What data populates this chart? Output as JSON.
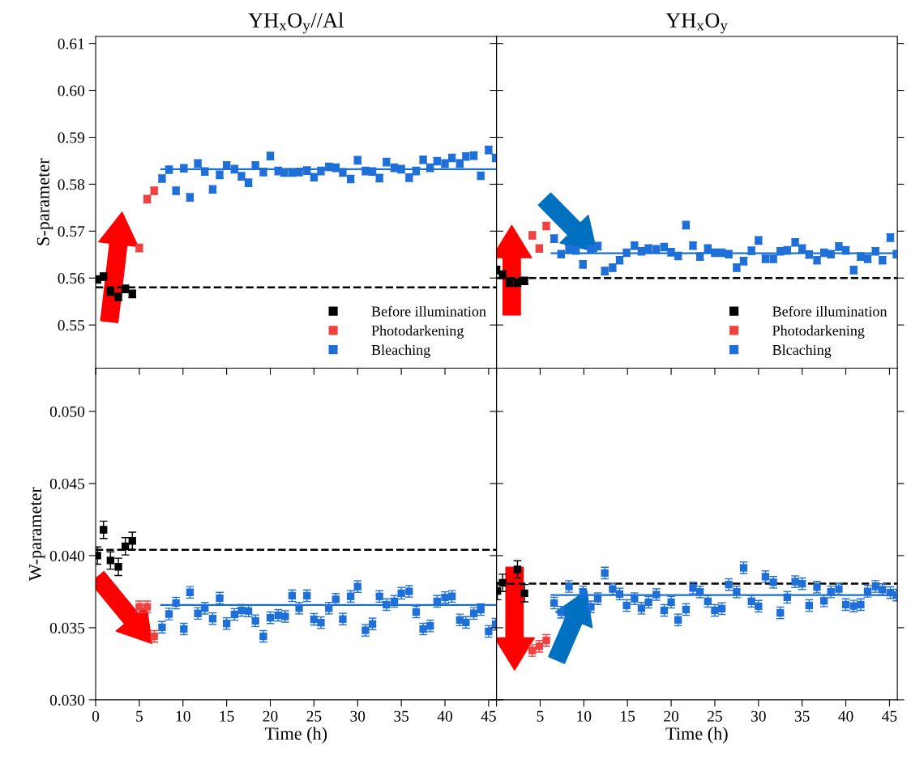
{
  "chart_data": [
    {
      "type": "scatter",
      "title": "YH$_{x}$O$_{y}$//Al",
      "ylabel": "S-parameter",
      "xlim": [
        0,
        45.9
      ],
      "ylim": [
        0.5408,
        0.6115
      ],
      "xticks": [
        0,
        5,
        10,
        15,
        20,
        25,
        30,
        35,
        40,
        45
      ],
      "yticks": [
        {
          "value": 0.55,
          "label": "0.55"
        },
        {
          "value": 0.56,
          "label": "0.56"
        },
        {
          "value": 0.57,
          "label": "0.57"
        },
        {
          "value": 0.58,
          "label": "0.58"
        },
        {
          "value": 0.59,
          "label": "0.59"
        },
        {
          "value": 0.6,
          "label": "0.60"
        },
        {
          "value": 0.61,
          "label": "0.61"
        }
      ],
      "tick_labels": "y",
      "marker": "square",
      "grid": false,
      "legend": "bottom right",
      "ref_lines": [
        {
          "axis": "y",
          "value": 0.558,
          "color": "#000000",
          "line_style": "dashed"
        }
      ],
      "series": [
        {
          "name": "Before illumination",
          "color": "#000000",
          "x": [
            0.2,
            0.9,
            1.7,
            2.6,
            3.4,
            4.2
          ],
          "values": [
            0.5597,
            0.5603,
            0.5571,
            0.556,
            0.5577,
            0.5566
          ],
          "errors": [
            0.0008,
            0.0008,
            0.0008,
            0.0008,
            0.0008,
            0.0008
          ]
        },
        {
          "name": "Photodarkening",
          "color": "#f04040",
          "x": [
            5.0,
            5.9,
            6.7
          ],
          "values": [
            0.5664,
            0.5768,
            0.5786
          ],
          "errors": [
            0.0008,
            0.0008,
            0.0008
          ]
        },
        {
          "name": "Bleaching",
          "color": "#1f6fd8",
          "x": [
            7.6,
            8.4,
            9.2,
            10.1,
            10.8,
            11.7,
            12.5,
            13.4,
            14.2,
            15.0,
            15.9,
            16.7,
            17.5,
            18.3,
            19.2,
            20.0,
            20.9,
            21.6,
            22.5,
            23.3,
            24.2,
            25.0,
            25.8,
            26.7,
            27.5,
            28.3,
            29.2,
            30.0,
            30.9,
            31.7,
            32.5,
            33.3,
            34.2,
            35.0,
            35.9,
            36.7,
            37.5,
            38.3,
            39.1,
            40.0,
            40.8,
            41.7,
            42.4,
            43.3,
            44.1,
            45.0,
            45.8
          ],
          "values": [
            0.5812,
            0.5831,
            0.5786,
            0.5834,
            0.5772,
            0.5844,
            0.5827,
            0.5789,
            0.582,
            0.584,
            0.5832,
            0.5817,
            0.5803,
            0.584,
            0.5826,
            0.586,
            0.5828,
            0.5825,
            0.5825,
            0.5826,
            0.5829,
            0.5815,
            0.5828,
            0.5837,
            0.5835,
            0.5825,
            0.5811,
            0.5851,
            0.5828,
            0.5827,
            0.5813,
            0.5847,
            0.5835,
            0.5832,
            0.5814,
            0.5828,
            0.5852,
            0.5835,
            0.5849,
            0.5844,
            0.5856,
            0.5844,
            0.5859,
            0.5861,
            0.5818,
            0.5873,
            0.5856
          ],
          "errors": [
            0.0008,
            0.0008,
            0.0008,
            0.0008,
            0.0008,
            0.0008,
            0.0008,
            0.0008,
            0.0008,
            0.0008,
            0.0008,
            0.0008,
            0.0008,
            0.0008,
            0.0008,
            0.0008,
            0.0008,
            0.0008,
            0.0008,
            0.0008,
            0.0008,
            0.0008,
            0.0008,
            0.0008,
            0.0008,
            0.0008,
            0.0008,
            0.0008,
            0.0008,
            0.0008,
            0.0008,
            0.0008,
            0.0008,
            0.0008,
            0.0008,
            0.0008,
            0.0008,
            0.0008,
            0.0008,
            0.0008,
            0.0008,
            0.0008,
            0.0008,
            0.0008,
            0.0008,
            0.0008,
            0.0008
          ]
        },
        {
          "type": "line",
          "color": "#1a6fd6",
          "line_style": "solid",
          "marker": "none",
          "x": [
            7.5,
            45.9
          ],
          "values": [
            0.5832,
            0.5832
          ]
        }
      ]
    },
    {
      "type": "scatter",
      "title": "YH$_{x}$O$_{y}$",
      "xlim": [
        0,
        45.9
      ],
      "ylim": [
        0.5408,
        0.6115
      ],
      "xticks": [
        {
          "value": 0,
          "label": null
        },
        5,
        10,
        15,
        20,
        25,
        30,
        35,
        40,
        45
      ],
      "yticks": [
        0.55,
        0.56,
        0.57,
        0.58,
        0.59,
        0.6,
        0.61
      ],
      "tick_labels": false,
      "marker": "square",
      "grid": false,
      "legend": "bottom right",
      "ref_lines": [
        {
          "axis": "y",
          "value": 0.56,
          "color": "#000000",
          "line_style": "dashed"
        }
      ],
      "series": [
        {
          "name": "Before illumination",
          "color": "#000000",
          "x": [
            0.0,
            0.7,
            1.5,
            2.4,
            3.2
          ],
          "values": [
            0.5617,
            0.5607,
            0.559,
            0.559,
            0.5594
          ],
          "errors": [
            0.0008,
            0.0008,
            0.0008,
            0.0008,
            0.0008
          ]
        },
        {
          "name": "Photodarkening",
          "color": "#f04040",
          "x": [
            4.1,
            4.9,
            5.7
          ],
          "values": [
            0.5691,
            0.5663,
            0.5711
          ],
          "errors": [
            0.0008,
            0.0008,
            0.0008
          ]
        },
        {
          "name": "Blcaching",
          "color": "#1f6fd8",
          "x": [
            6.6,
            7.4,
            8.3,
            9.1,
            9.9,
            10.8,
            11.6,
            12.4,
            13.3,
            14.1,
            14.9,
            15.8,
            16.6,
            17.4,
            18.3,
            19.2,
            20.0,
            20.8,
            21.7,
            22.5,
            23.3,
            24.2,
            25.0,
            25.8,
            26.6,
            27.5,
            28.3,
            29.2,
            30.0,
            30.8,
            31.7,
            32.5,
            33.3,
            34.2,
            35.0,
            35.8,
            36.7,
            37.5,
            38.3,
            39.2,
            40.0,
            40.9,
            41.7,
            42.5,
            43.4,
            44.2,
            45.1,
            45.8
          ],
          "values": [
            0.5684,
            0.5651,
            0.5662,
            0.5659,
            0.5629,
            0.5661,
            0.5668,
            0.5615,
            0.5622,
            0.5638,
            0.5654,
            0.5669,
            0.5657,
            0.5663,
            0.5661,
            0.5666,
            0.5655,
            0.5647,
            0.5713,
            0.5669,
            0.5646,
            0.5663,
            0.5654,
            0.5654,
            0.5651,
            0.5622,
            0.5636,
            0.5658,
            0.568,
            0.5641,
            0.5641,
            0.5657,
            0.5659,
            0.5676,
            0.5663,
            0.565,
            0.5638,
            0.5654,
            0.5651,
            0.5667,
            0.5659,
            0.5617,
            0.5646,
            0.5641,
            0.5657,
            0.5638,
            0.5686,
            0.5651
          ],
          "errors": [
            0.0008,
            0.0008,
            0.0008,
            0.0008,
            0.0008,
            0.0008,
            0.0008,
            0.0008,
            0.0008,
            0.0008,
            0.0008,
            0.0008,
            0.0008,
            0.0008,
            0.0008,
            0.0008,
            0.0008,
            0.0008,
            0.0008,
            0.0008,
            0.0008,
            0.0008,
            0.0008,
            0.0008,
            0.0008,
            0.0008,
            0.0008,
            0.0008,
            0.0008,
            0.0008,
            0.0008,
            0.0008,
            0.0008,
            0.0008,
            0.0008,
            0.0008,
            0.0008,
            0.0008,
            0.0008,
            0.0008,
            0.0008,
            0.0008,
            0.0008,
            0.0008,
            0.0008,
            0.0008,
            0.0008,
            0.0008
          ]
        },
        {
          "type": "line",
          "color": "#1a6fd6",
          "line_style": "solid",
          "marker": "none",
          "x": [
            6.3,
            45.9
          ],
          "values": [
            0.5653,
            0.5653
          ]
        }
      ]
    },
    {
      "type": "scatter",
      "xlabel": "Time (h)",
      "ylabel": "W-parameter",
      "xlim": [
        0,
        45.9
      ],
      "ylim": [
        0.03,
        0.053
      ],
      "xticks": [
        0,
        5,
        10,
        15,
        20,
        25,
        30,
        35,
        40,
        45
      ],
      "yticks": [
        {
          "value": 0.03,
          "label": "0.030"
        },
        {
          "value": 0.035,
          "label": "0.035"
        },
        {
          "value": 0.04,
          "label": "0.040"
        },
        {
          "value": 0.045,
          "label": "0.045"
        },
        {
          "value": 0.05,
          "label": "0.050"
        }
      ],
      "marker": "square",
      "grid": false,
      "ref_lines": [
        {
          "axis": "y",
          "value": 0.0404,
          "color": "#000000",
          "line_style": "dashed"
        }
      ],
      "series": [
        {
          "color": "#000000",
          "x": [
            0.2,
            0.9,
            1.7,
            2.6,
            3.4,
            4.2
          ],
          "values": [
            0.04,
            0.04179,
            0.03966,
            0.03922,
            0.04064,
            0.04102
          ],
          "errors": [
            0.0006,
            0.0006,
            0.0006,
            0.0006,
            0.0006,
            0.0006
          ]
        },
        {
          "color": "#f04040",
          "x": [
            5.0,
            5.9,
            6.7
          ],
          "values": [
            0.03645,
            0.03645,
            0.0344
          ],
          "errors": [
            0.0004,
            0.0004,
            0.0004
          ]
        },
        {
          "color": "#1f6fd8",
          "x": [
            7.6,
            8.4,
            9.2,
            10.1,
            10.8,
            11.7,
            12.5,
            13.4,
            14.2,
            15.0,
            15.9,
            16.7,
            17.5,
            18.3,
            19.2,
            20.0,
            20.9,
            21.7,
            22.5,
            23.3,
            24.2,
            25.0,
            25.8,
            26.7,
            27.5,
            28.3,
            29.2,
            30.0,
            30.9,
            31.7,
            32.5,
            33.3,
            34.2,
            35.0,
            35.9,
            36.7,
            37.5,
            38.3,
            39.1,
            40.0,
            40.8,
            41.7,
            42.4,
            43.3,
            44.1,
            45.0,
            45.8
          ],
          "values": [
            0.03503,
            0.03595,
            0.03671,
            0.03491,
            0.03745,
            0.03599,
            0.03635,
            0.03563,
            0.03705,
            0.03529,
            0.03592,
            0.0362,
            0.03616,
            0.03548,
            0.0344,
            0.03569,
            0.03586,
            0.03578,
            0.03722,
            0.03635,
            0.03722,
            0.03558,
            0.03535,
            0.03635,
            0.03697,
            0.0356,
            0.03717,
            0.03785,
            0.03482,
            0.03526,
            0.03717,
            0.0366,
            0.03683,
            0.03739,
            0.03752,
            0.03609,
            0.03491,
            0.03512,
            0.03683,
            0.03709,
            0.03717,
            0.03554,
            0.03537,
            0.03599,
            0.03626,
            0.03474,
            0.03524
          ],
          "errors": [
            0.0004,
            0.0004,
            0.0004,
            0.0004,
            0.0004,
            0.0004,
            0.0004,
            0.0004,
            0.0004,
            0.0004,
            0.0004,
            0.0004,
            0.0004,
            0.0004,
            0.0004,
            0.0004,
            0.0004,
            0.0004,
            0.0004,
            0.0004,
            0.0004,
            0.0004,
            0.0004,
            0.0004,
            0.0004,
            0.0004,
            0.0004,
            0.0004,
            0.0004,
            0.0004,
            0.0004,
            0.0004,
            0.0004,
            0.0004,
            0.0004,
            0.0004,
            0.0004,
            0.0004,
            0.0004,
            0.0004,
            0.0004,
            0.0004,
            0.0004,
            0.0004,
            0.0004,
            0.0004,
            0.0004
          ]
        },
        {
          "type": "line",
          "color": "#1a6fd6",
          "line_style": "solid",
          "marker": "none",
          "x": [
            7.5,
            45.9
          ],
          "values": [
            0.03658,
            0.03658
          ]
        }
      ]
    },
    {
      "type": "scatter",
      "xlabel": "Time (h)",
      "xlim": [
        0,
        45.9
      ],
      "ylim": [
        0.03,
        0.053
      ],
      "xticks": [
        {
          "value": 0,
          "label": null
        },
        5,
        10,
        15,
        20,
        25,
        30,
        35,
        40,
        45
      ],
      "yticks": [
        0.03,
        0.035,
        0.04,
        0.045,
        0.05
      ],
      "tick_labels": "x",
      "marker": "square",
      "grid": false,
      "ref_lines": [
        {
          "axis": "y",
          "value": 0.03805,
          "color": "#000000",
          "line_style": "dashed"
        }
      ],
      "series": [
        {
          "color": "#000000",
          "x": [
            0.1,
            0.7,
            2.4,
            3.2
          ],
          "values": [
            0.03754,
            0.03811,
            0.03904,
            0.03739
          ],
          "errors": [
            0.0006,
            0.0006,
            0.0006,
            0.0006
          ]
        },
        {
          "color": "#f04040",
          "x": [
            4.1,
            4.9,
            5.7
          ],
          "values": [
            0.03342,
            0.03371,
            0.03412
          ],
          "errors": [
            0.0004,
            0.0004,
            0.0004
          ]
        },
        {
          "color": "#1f6fd8",
          "x": [
            6.6,
            7.4,
            8.3,
            9.9,
            10.8,
            11.6,
            12.4,
            13.3,
            14.1,
            14.9,
            15.8,
            16.6,
            17.4,
            18.3,
            19.2,
            20.0,
            20.8,
            21.7,
            22.5,
            23.3,
            24.2,
            25.0,
            25.8,
            26.6,
            27.5,
            28.3,
            29.2,
            30.0,
            30.8,
            31.7,
            32.5,
            33.3,
            34.2,
            35.0,
            35.8,
            36.7,
            37.5,
            38.3,
            39.2,
            40.0,
            40.9,
            41.7,
            42.5,
            43.4,
            44.2,
            45.1,
            45.8
          ],
          "values": [
            0.03671,
            0.03607,
            0.03786,
            0.03748,
            0.03645,
            0.03701,
            0.03879,
            0.03768,
            0.03734,
            0.03654,
            0.03701,
            0.03635,
            0.03677,
            0.0373,
            0.0362,
            0.03677,
            0.03554,
            0.03626,
            0.03775,
            0.03748,
            0.03683,
            0.0362,
            0.03632,
            0.03799,
            0.03748,
            0.03915,
            0.03683,
            0.03649,
            0.03854,
            0.03815,
            0.03603,
            0.03711,
            0.03819,
            0.03805,
            0.03654,
            0.03781,
            0.03686,
            0.03748,
            0.03768,
            0.0366,
            0.0365,
            0.0366,
            0.03752,
            0.03786,
            0.03764,
            0.03743,
            0.03726
          ],
          "errors": [
            0.0004,
            0.0004,
            0.0004,
            0.0004,
            0.0004,
            0.0004,
            0.0004,
            0.0004,
            0.0004,
            0.0004,
            0.0004,
            0.0004,
            0.0004,
            0.0004,
            0.0004,
            0.0004,
            0.0004,
            0.0004,
            0.0004,
            0.0004,
            0.0004,
            0.0004,
            0.0004,
            0.0004,
            0.0004,
            0.0004,
            0.0004,
            0.0004,
            0.0004,
            0.0004,
            0.0004,
            0.0004,
            0.0004,
            0.0004,
            0.0004,
            0.0004,
            0.0004,
            0.0004,
            0.0004,
            0.0004,
            0.0004,
            0.0004,
            0.0004,
            0.0004,
            0.0004,
            0.0004,
            0.0004
          ]
        },
        {
          "type": "line",
          "color": "#1a6fd6",
          "line_style": "solid",
          "marker": "none",
          "x": [
            6.3,
            45.9
          ],
          "values": [
            0.03726,
            0.03726
          ]
        }
      ]
    }
  ]
}
